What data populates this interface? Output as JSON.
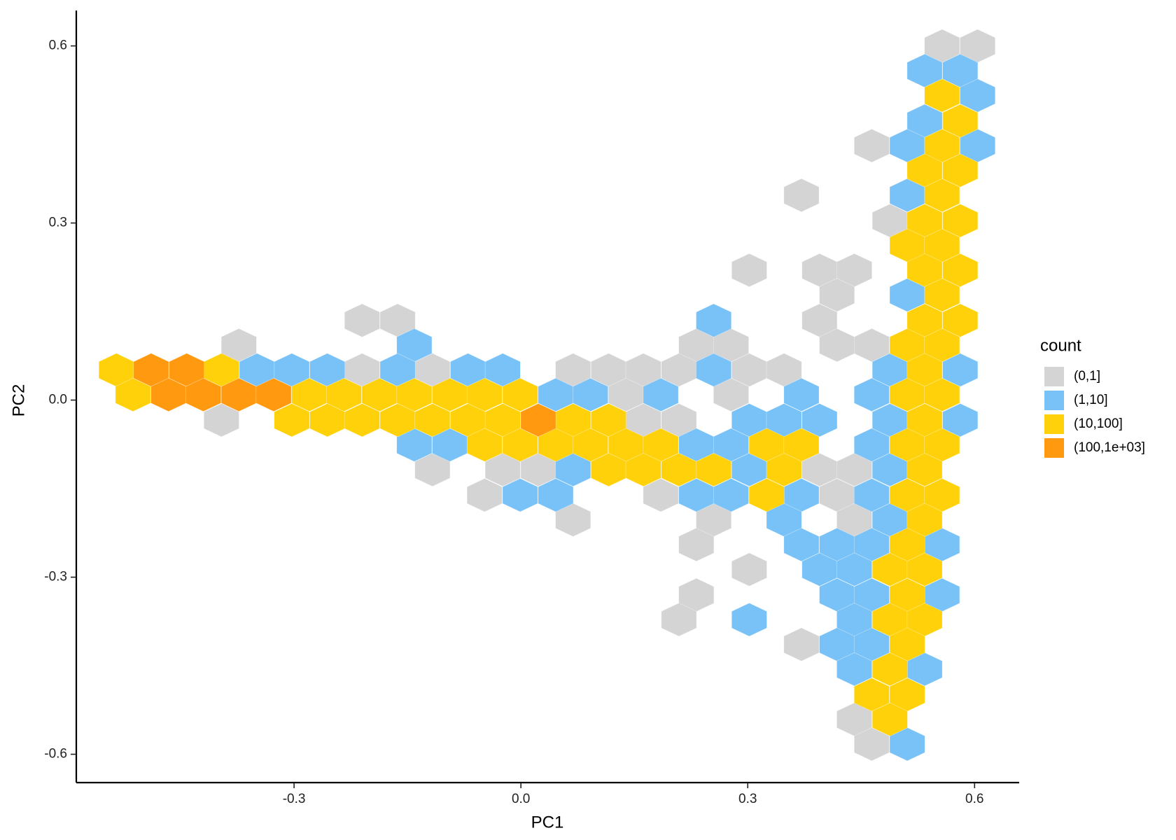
{
  "chart_data": {
    "type": "hexbin",
    "x_label": "PC1",
    "y_label": "PC2",
    "legend_title": "count",
    "legend_position": "right",
    "xlim": [
      -0.588,
      0.659
    ],
    "ylim": [
      -0.648,
      0.66
    ],
    "xticks": [
      -0.3,
      {
        "value": 0,
        "label": "0.0"
      },
      0.3,
      0.6
    ],
    "yticks": [
      -0.6,
      -0.3,
      {
        "value": 0,
        "label": "0.0"
      },
      0.3,
      0.6
    ],
    "series": [
      {
        "name": "(0,1]",
        "color": "#d4d4d4",
        "x": [
          0.557,
          0.604,
          0.464,
          0.371,
          0.488,
          0.302,
          0.395,
          0.441,
          0.418,
          -0.21,
          -0.163,
          0.395,
          -0.373,
          0.232,
          0.278,
          0.418,
          0.464,
          -0.21,
          -0.117,
          0.069,
          0.116,
          0.162,
          0.209,
          0.302,
          0.348,
          0.139,
          0.278,
          -0.396,
          0.162,
          0.209,
          -0.117,
          -0.024,
          0.023,
          0.395,
          0.441,
          -0.048,
          0.185,
          0.418,
          0.069,
          0.255,
          0.441,
          0.232,
          0.302,
          0.232,
          0.209,
          0.371,
          0.441,
          0.464
        ],
        "y": [
          0.6,
          0.6,
          0.431,
          0.347,
          0.304,
          0.22,
          0.22,
          0.22,
          0.178,
          0.135,
          0.135,
          0.135,
          0.093,
          0.093,
          0.093,
          0.093,
          0.093,
          0.051,
          0.051,
          0.051,
          0.051,
          0.051,
          0.051,
          0.051,
          0.051,
          0.009,
          0.009,
          -0.034,
          -0.034,
          -0.034,
          -0.118,
          -0.118,
          -0.118,
          -0.118,
          -0.118,
          -0.161,
          -0.161,
          -0.161,
          -0.203,
          -0.203,
          -0.203,
          -0.245,
          -0.287,
          -0.33,
          -0.372,
          -0.414,
          -0.541,
          -0.583
        ]
      },
      {
        "name": "(1,10]",
        "color": "#79c2f7",
        "x": [
          0.534,
          0.581,
          0.604,
          0.534,
          0.511,
          0.604,
          0.511,
          0.511,
          0.255,
          -0.141,
          -0.349,
          -0.303,
          -0.256,
          -0.163,
          -0.07,
          -0.024,
          0.255,
          0.488,
          0.581,
          0.046,
          0.092,
          0.185,
          0.371,
          0.464,
          0.302,
          0.348,
          0.395,
          0.488,
          0.581,
          -0.141,
          -0.094,
          0.232,
          0.278,
          0.464,
          0.069,
          0.302,
          0.488,
          -0.001,
          0.046,
          0.232,
          0.278,
          0.371,
          0.464,
          0.348,
          0.488,
          0.371,
          0.418,
          0.464,
          0.557,
          0.395,
          0.441,
          0.418,
          0.464,
          0.557,
          0.302,
          0.441,
          0.418,
          0.464,
          0.441,
          0.534,
          0.511
        ],
        "y": [
          0.558,
          0.558,
          0.516,
          0.473,
          0.431,
          0.431,
          0.347,
          0.178,
          0.135,
          0.093,
          0.051,
          0.051,
          0.051,
          0.051,
          0.051,
          0.051,
          0.051,
          0.051,
          0.051,
          0.009,
          0.009,
          0.009,
          0.009,
          0.009,
          -0.034,
          -0.034,
          -0.034,
          -0.034,
          -0.034,
          -0.076,
          -0.076,
          -0.076,
          -0.076,
          -0.076,
          -0.118,
          -0.118,
          -0.118,
          -0.161,
          -0.161,
          -0.161,
          -0.161,
          -0.161,
          -0.161,
          -0.203,
          -0.203,
          -0.245,
          -0.245,
          -0.245,
          -0.245,
          -0.287,
          -0.287,
          -0.33,
          -0.33,
          -0.33,
          -0.372,
          -0.372,
          -0.414,
          -0.414,
          -0.456,
          -0.456,
          -0.583
        ]
      },
      {
        "name": "(10,100]",
        "color": "#ffd10a",
        "x": [
          0.557,
          0.581,
          0.557,
          0.534,
          0.581,
          0.557,
          0.534,
          0.581,
          0.511,
          0.557,
          0.534,
          0.581,
          0.557,
          0.534,
          0.581,
          0.511,
          0.557,
          -0.535,
          -0.396,
          0.534,
          -0.513,
          -0.28,
          -0.234,
          -0.187,
          -0.141,
          -0.094,
          -0.048,
          -0.001,
          0.511,
          0.557,
          -0.303,
          -0.256,
          -0.21,
          -0.163,
          -0.117,
          -0.07,
          -0.024,
          0.069,
          0.116,
          0.534,
          -0.048,
          -0.001,
          0.046,
          0.092,
          0.139,
          0.185,
          0.325,
          0.371,
          0.511,
          0.557,
          0.116,
          0.162,
          0.209,
          0.255,
          0.348,
          0.534,
          0.325,
          0.511,
          0.557,
          0.534,
          0.511,
          0.488,
          0.534,
          0.511,
          0.488,
          0.534,
          0.511,
          0.488,
          0.464,
          0.511,
          0.488
        ],
        "y": [
          0.516,
          0.473,
          0.431,
          0.389,
          0.389,
          0.347,
          0.304,
          0.304,
          0.262,
          0.262,
          0.22,
          0.22,
          0.178,
          0.135,
          0.135,
          0.093,
          0.093,
          0.051,
          0.051,
          0.051,
          0.009,
          0.009,
          0.009,
          0.009,
          0.009,
          0.009,
          0.009,
          0.009,
          0.009,
          0.009,
          -0.034,
          -0.034,
          -0.034,
          -0.034,
          -0.034,
          -0.034,
          -0.034,
          -0.034,
          -0.034,
          -0.034,
          -0.076,
          -0.076,
          -0.076,
          -0.076,
          -0.076,
          -0.076,
          -0.076,
          -0.076,
          -0.076,
          -0.076,
          -0.118,
          -0.118,
          -0.118,
          -0.118,
          -0.118,
          -0.118,
          -0.161,
          -0.161,
          -0.161,
          -0.203,
          -0.245,
          -0.287,
          -0.287,
          -0.33,
          -0.372,
          -0.372,
          -0.414,
          -0.456,
          -0.499,
          -0.499,
          -0.541
        ]
      },
      {
        "name": "(100,1e+03]",
        "color": "#ff9910",
        "x": [
          -0.489,
          -0.442,
          -0.466,
          -0.42,
          -0.373,
          -0.327,
          0.023
        ],
        "y": [
          0.051,
          0.051,
          0.009,
          0.009,
          0.009,
          0.009,
          -0.034
        ]
      }
    ]
  }
}
